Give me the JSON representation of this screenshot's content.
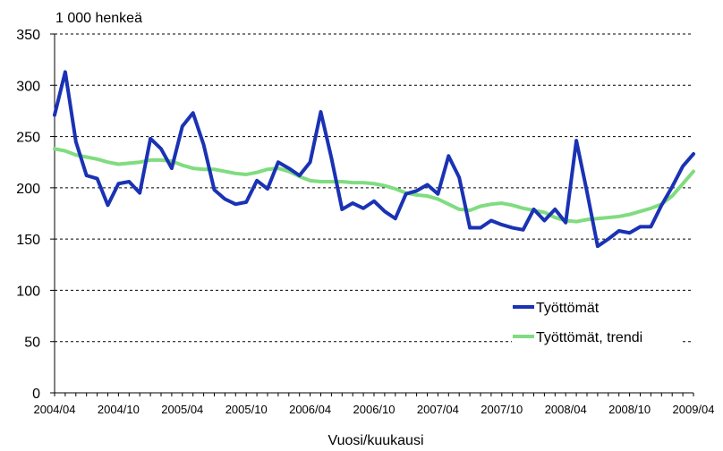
{
  "chart_data": {
    "type": "line",
    "unit_label": "1 000 henkeä",
    "xlabel": "Vuosi/kuukausi",
    "ylim": [
      0,
      350
    ],
    "y_ticks": [
      0,
      50,
      100,
      150,
      200,
      250,
      300,
      350
    ],
    "y_tick_labels": [
      "0",
      "50",
      "100",
      "150",
      "200",
      "250",
      "300",
      "350"
    ],
    "x_tick_labels": [
      "2004/04",
      "2004/10",
      "2005/04",
      "2005/10",
      "2006/04",
      "2006/10",
      "2007/04",
      "2007/10",
      "2008/04",
      "2008/10",
      "2009/04"
    ],
    "grid": "horizontal dashed",
    "legend_position": "bottom-right",
    "x": [
      "2004/04",
      "2004/05",
      "2004/06",
      "2004/07",
      "2004/08",
      "2004/09",
      "2004/10",
      "2004/11",
      "2004/12",
      "2005/01",
      "2005/02",
      "2005/03",
      "2005/04",
      "2005/05",
      "2005/06",
      "2005/07",
      "2005/08",
      "2005/09",
      "2005/10",
      "2005/11",
      "2005/12",
      "2006/01",
      "2006/02",
      "2006/03",
      "2006/04",
      "2006/05",
      "2006/06",
      "2006/07",
      "2006/08",
      "2006/09",
      "2006/10",
      "2006/11",
      "2006/12",
      "2007/01",
      "2007/02",
      "2007/03",
      "2007/04",
      "2007/05",
      "2007/06",
      "2007/07",
      "2007/08",
      "2007/09",
      "2007/10",
      "2007/11",
      "2007/12",
      "2008/01",
      "2008/02",
      "2008/03",
      "2008/04",
      "2008/05",
      "2008/06",
      "2008/07",
      "2008/08",
      "2008/09",
      "2008/10",
      "2008/11",
      "2008/12",
      "2009/01",
      "2009/02",
      "2009/03",
      "2009/04"
    ],
    "series": [
      {
        "name": "Työttömät",
        "color": "#1a32b4",
        "values": [
          271,
          313,
          245,
          212,
          209,
          183,
          204,
          206,
          195,
          248,
          238,
          219,
          260,
          273,
          242,
          198,
          189,
          184,
          186,
          207,
          199,
          225,
          219,
          212,
          225,
          274,
          229,
          179,
          185,
          180,
          187,
          177,
          170,
          194,
          197,
          203,
          194,
          231,
          210,
          161,
          161,
          168,
          164,
          161,
          159,
          179,
          168,
          179,
          166,
          246,
          196,
          143,
          150,
          158,
          156,
          162,
          162,
          183,
          201,
          221,
          233
        ]
      },
      {
        "name": "Työttömät, trendi",
        "color": "#80dc80",
        "values": [
          238,
          236,
          232,
          230,
          228,
          225,
          223,
          224,
          225,
          227,
          227,
          226,
          222,
          219,
          218,
          218,
          216,
          214,
          213,
          215,
          218,
          219,
          216,
          211,
          207,
          206,
          206,
          206,
          205,
          205,
          204,
          202,
          199,
          195,
          193,
          192,
          189,
          184,
          179,
          178,
          182,
          184,
          185,
          183,
          180,
          178,
          176,
          171,
          168,
          167,
          169,
          170,
          171,
          172,
          174,
          177,
          180,
          184,
          192,
          204,
          216
        ]
      }
    ]
  }
}
